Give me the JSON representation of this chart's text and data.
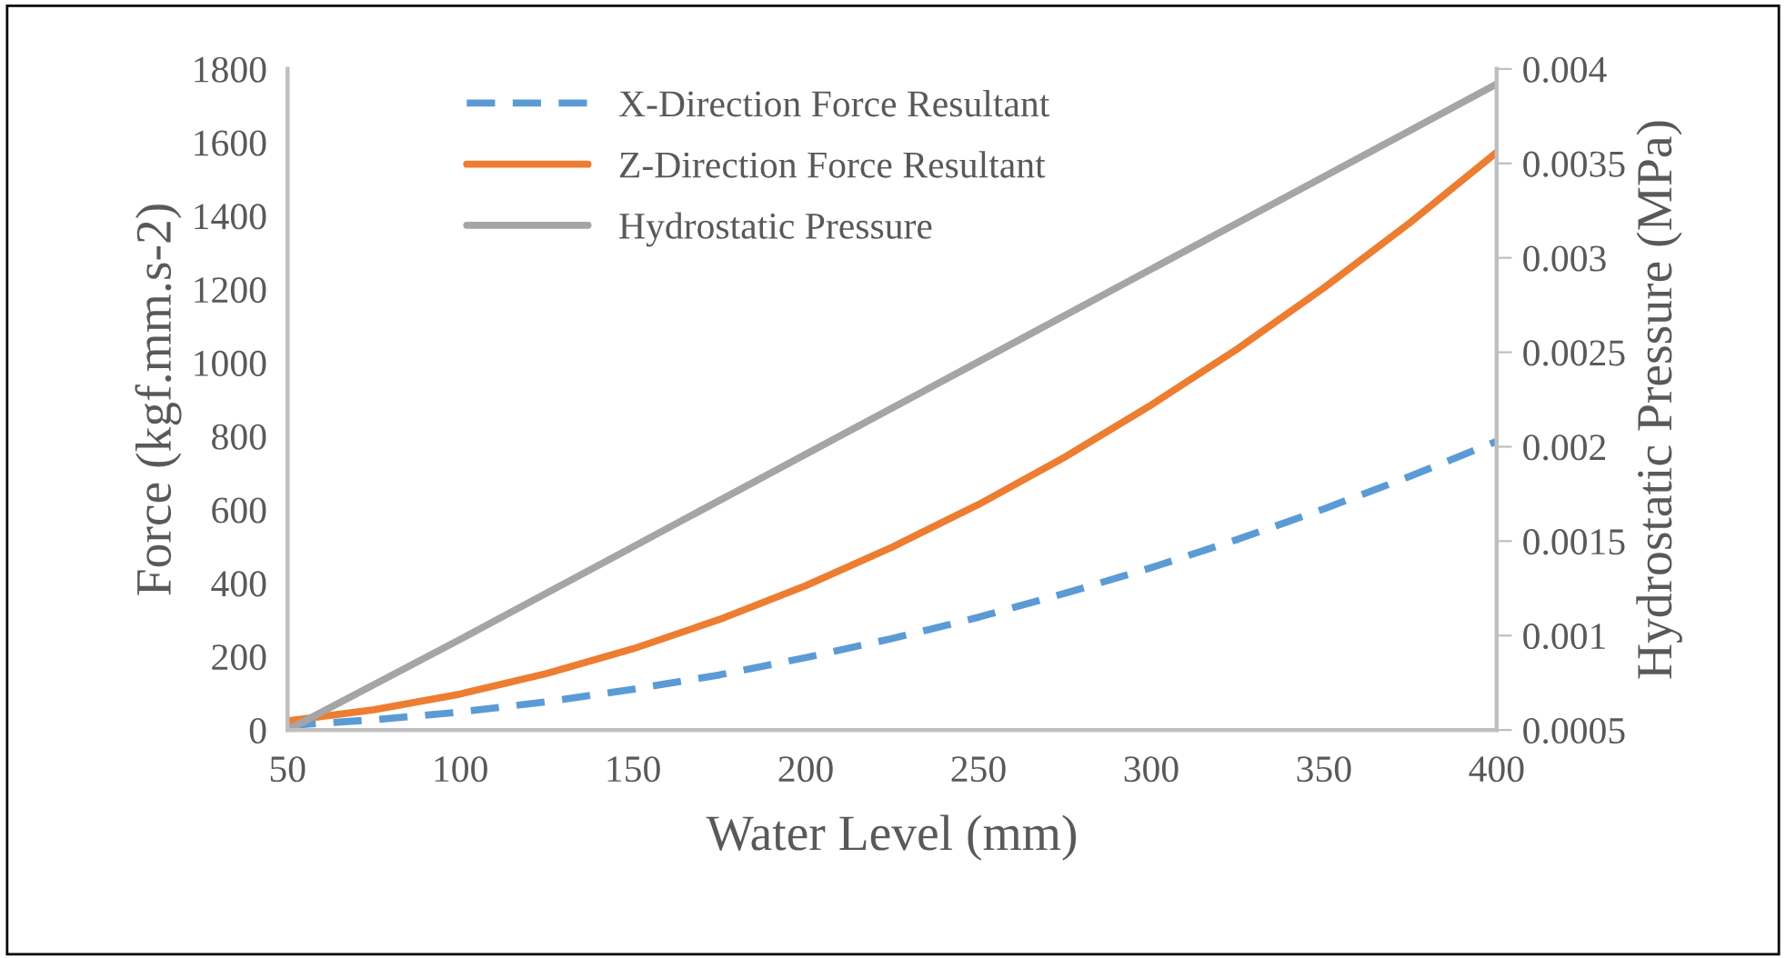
{
  "chart_data": {
    "type": "line",
    "xlabel": "Water Level (mm)",
    "ylabel": "Force (kgf.mm.s-2)",
    "y2label": "Hydrostatic Pressure (MPa)",
    "x": [
      50,
      75,
      100,
      125,
      150,
      175,
      200,
      225,
      250,
      275,
      300,
      325,
      350,
      375,
      400
    ],
    "xlim": [
      50,
      400
    ],
    "xticks": [
      50,
      100,
      150,
      200,
      250,
      300,
      350,
      400
    ],
    "ylim": [
      0,
      1800
    ],
    "yticks": [
      0,
      200,
      400,
      600,
      800,
      1000,
      1200,
      1400,
      1600,
      1800
    ],
    "y2lim": [
      0.0005,
      0.004
    ],
    "y2ticks": [
      0.0005,
      0.001,
      0.0015,
      0.002,
      0.0025,
      0.003,
      0.0035,
      0.004
    ],
    "series": [
      {
        "name": "X-Direction Force Resultant",
        "color": "#5b9bd5",
        "line_style": "dashed",
        "values": [
          12,
          28,
          49,
          77,
          111,
          150,
          197,
          249,
          307,
          372,
          442,
          519,
          602,
          691,
          786
        ]
      },
      {
        "name": "Z-Direction Force Resultant",
        "color": "#ed7d31",
        "line_style": "solid",
        "values": [
          25,
          55,
          98,
          154,
          221,
          301,
          393,
          498,
          614,
          743,
          885,
          1038,
          1204,
          1382,
          1573
        ]
      },
      {
        "name": "Hydrostatic Pressure",
        "color": "#a5a5a5",
        "line_style": "solid",
        "axis": "y2",
        "x": [
          50,
          100,
          150,
          200,
          250,
          300,
          350,
          400
        ],
        "values": [
          0.0005,
          0.00098,
          0.00147,
          0.00196,
          0.00245,
          0.00294,
          0.00343,
          0.00392
        ]
      }
    ],
    "grid": false,
    "legend": "top left"
  }
}
